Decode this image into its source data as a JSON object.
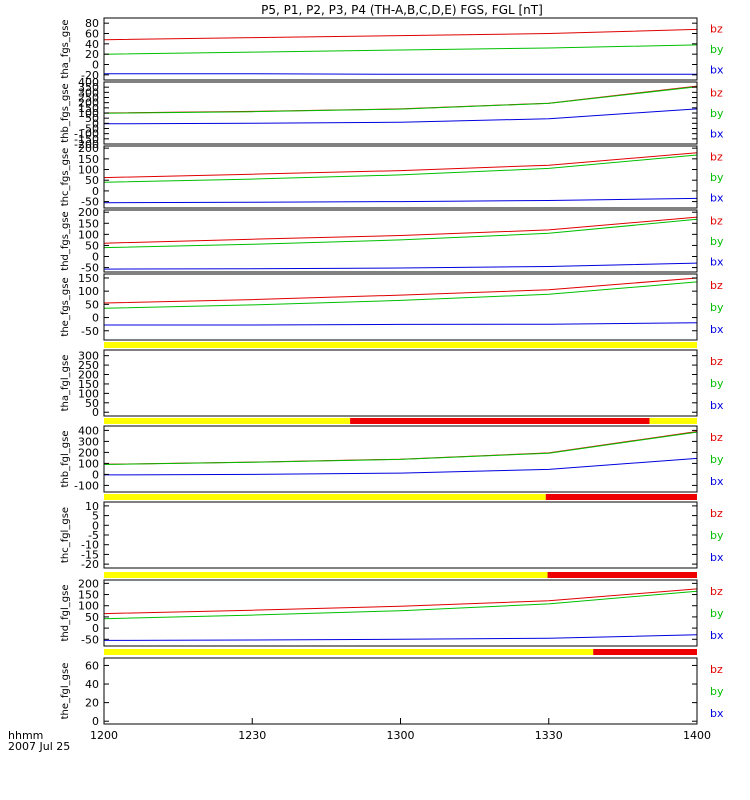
{
  "title": "P5, P1, P2, P3, P4 (TH-A,B,C,D,E) FGS, FGL [nT]",
  "x_axis": {
    "tick_labels": [
      "1200",
      "1230",
      "1300",
      "1330",
      "1400"
    ],
    "unit_label": "hhmm",
    "date_label": "2007 Jul 25"
  },
  "colors": {
    "bz": "#e00000",
    "by": "#00c000",
    "bx": "#0000e0",
    "bar_yellow": "#ffff00",
    "bar_red": "#ee0000"
  },
  "chart_data": [
    {
      "type": "line",
      "panel": "tha_fgs_gse",
      "ylabel": "tha_fgs_gse",
      "ylim": [
        -30,
        90
      ],
      "yticks": [
        80,
        60,
        40,
        20,
        0,
        -20
      ],
      "x": [
        0,
        30,
        60,
        90,
        120
      ],
      "series": [
        {
          "name": "bz",
          "values": [
            48,
            52,
            56,
            60,
            68
          ]
        },
        {
          "name": "by",
          "values": [
            20,
            24,
            28,
            32,
            38
          ]
        },
        {
          "name": "bx",
          "values": [
            -18,
            -18,
            -19,
            -19,
            -19
          ]
        }
      ]
    },
    {
      "type": "line",
      "panel": "thb_fgs_gse",
      "ylabel": "thb_fgs_gse",
      "ylim": [
        -200,
        400
      ],
      "yticks": [
        400,
        350,
        300,
        250,
        200,
        150,
        100,
        50,
        0,
        -50,
        -100,
        -150,
        -200
      ],
      "x": [
        0,
        30,
        60,
        90,
        120
      ],
      "series": [
        {
          "name": "bz",
          "values": [
            100,
            115,
            140,
            195,
            360
          ]
        },
        {
          "name": "by",
          "values": [
            98,
            113,
            138,
            193,
            355
          ]
        },
        {
          "name": "bx",
          "values": [
            -5,
            0,
            10,
            45,
            140
          ]
        }
      ]
    },
    {
      "type": "line",
      "panel": "thc_fgs_gse",
      "ylabel": "thc_fgs_gse",
      "ylim": [
        -80,
        210
      ],
      "yticks": [
        200,
        150,
        100,
        50,
        0,
        -50
      ],
      "x": [
        0,
        30,
        60,
        90,
        120
      ],
      "series": [
        {
          "name": "bz",
          "values": [
            62,
            78,
            95,
            120,
            178
          ]
        },
        {
          "name": "by",
          "values": [
            40,
            55,
            75,
            105,
            168
          ]
        },
        {
          "name": "bx",
          "values": [
            -55,
            -53,
            -50,
            -45,
            -35
          ]
        }
      ]
    },
    {
      "type": "line",
      "panel": "thd_fgs_gse",
      "ylabel": "thd_fgs_gse",
      "ylim": [
        -70,
        210
      ],
      "yticks": [
        200,
        150,
        100,
        50,
        0,
        -50
      ],
      "x": [
        0,
        30,
        60,
        90,
        120
      ],
      "series": [
        {
          "name": "bz",
          "values": [
            60,
            78,
            95,
            120,
            178
          ]
        },
        {
          "name": "by",
          "values": [
            40,
            55,
            75,
            105,
            168
          ]
        },
        {
          "name": "bx",
          "values": [
            -57,
            -55,
            -52,
            -45,
            -30
          ]
        }
      ]
    },
    {
      "type": "line",
      "panel": "the_fgs_gse",
      "ylabel": "the_fgs_gse",
      "ylim": [
        -85,
        165
      ],
      "yticks": [
        150,
        100,
        50,
        0,
        -50
      ],
      "x": [
        0,
        30,
        60,
        90,
        120
      ],
      "series": [
        {
          "name": "bz",
          "values": [
            55,
            68,
            85,
            105,
            150
          ]
        },
        {
          "name": "by",
          "values": [
            35,
            48,
            65,
            88,
            135
          ]
        },
        {
          "name": "bx",
          "values": [
            -28,
            -28,
            -26,
            -25,
            -20
          ]
        }
      ]
    },
    {
      "type": "line",
      "panel": "tha_fgl_gse",
      "ylabel": "tha_fgl_gse",
      "ylim": [
        -20,
        330
      ],
      "yticks": [
        300,
        250,
        200,
        150,
        100,
        50,
        0
      ],
      "x": [],
      "series": []
    },
    {
      "type": "line",
      "panel": "thb_fgl_gse",
      "ylabel": "thb_fgl_gse",
      "ylim": [
        -160,
        440
      ],
      "yticks": [
        400,
        300,
        200,
        100,
        0,
        -100
      ],
      "x": [
        0,
        30,
        60,
        90,
        120
      ],
      "series": [
        {
          "name": "bz",
          "values": [
            92,
            112,
            138,
            195,
            390
          ]
        },
        {
          "name": "by",
          "values": [
            90,
            110,
            136,
            193,
            385
          ]
        },
        {
          "name": "bx",
          "values": [
            -5,
            0,
            12,
            45,
            145
          ]
        }
      ]
    },
    {
      "type": "line",
      "panel": "thc_fgl_gse",
      "ylabel": "thc_fgl_gse",
      "ylim": [
        -22,
        12
      ],
      "yticks": [
        10,
        5,
        0,
        -5,
        -10,
        -15,
        -20
      ],
      "x": [],
      "series": []
    },
    {
      "type": "line",
      "panel": "thd_fgl_gse",
      "ylabel": "thd_fgl_gse",
      "ylim": [
        -80,
        215
      ],
      "yticks": [
        200,
        150,
        100,
        50,
        0,
        -50
      ],
      "x": [
        0,
        30,
        60,
        90,
        120
      ],
      "series": [
        {
          "name": "bz",
          "values": [
            65,
            80,
            98,
            122,
            175
          ]
        },
        {
          "name": "by",
          "values": [
            42,
            58,
            78,
            108,
            165
          ]
        },
        {
          "name": "bx",
          "values": [
            -55,
            -53,
            -50,
            -45,
            -30
          ]
        }
      ]
    },
    {
      "type": "line",
      "panel": "the_fgl_gse",
      "ylabel": "the_fgl_gse",
      "ylim": [
        -3,
        68
      ],
      "yticks": [
        60,
        40,
        20,
        0
      ],
      "x": [],
      "series": []
    }
  ],
  "status_bars": [
    {
      "above_panel": "tha_fgl_gse",
      "yellow_until_fraction": 1.0
    },
    {
      "above_panel": "thb_fgl_gse",
      "yellow_until_fraction": 0.415,
      "red_until_fraction": 0.92
    },
    {
      "above_panel": "thc_fgl_gse",
      "yellow_until_fraction": 0.745
    },
    {
      "above_panel": "thd_fgl_gse",
      "yellow_until_fraction": 0.748
    },
    {
      "above_panel": "the_fgl_gse",
      "yellow_until_fraction": 0.825
    }
  ]
}
